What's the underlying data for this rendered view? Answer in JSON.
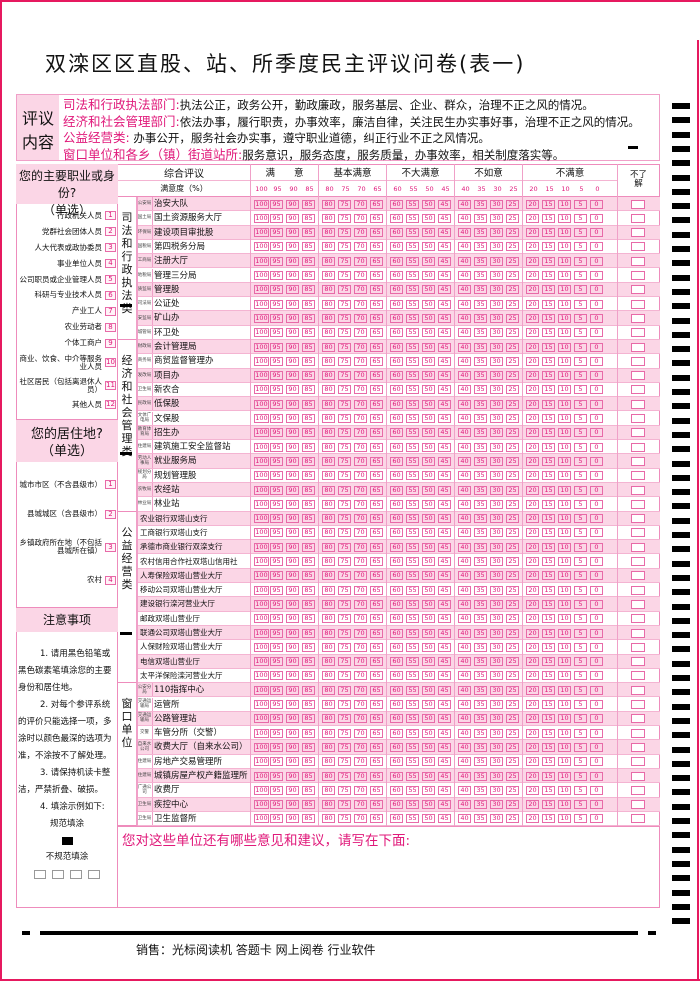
{
  "title": "双滦区区直股、站、所季度民主评议问卷(表一)",
  "review": {
    "label_1": "评议",
    "label_2": "内容",
    "lines": [
      {
        "key": "司法和行政执法部门:",
        "text": "执法公正，政务公开，勤政廉政，服务基层、企业、群众，治理不正之风的情况。"
      },
      {
        "key": "经济和社会管理部门:",
        "text": "依法办事，履行职责，办事效率，廉洁自律，关注民生办实事好事，治理不正之风的情况。"
      },
      {
        "key": "公益经营类:",
        "text": "  办事公开，服务社会办实事，遵守职业道德，纠正行业不正之风情况。"
      },
      {
        "key": "窗口单位和各乡（镇）街道站所:",
        "text": "服务意识，服务态度，服务质量，办事效率，相关制度落实等。"
      }
    ]
  },
  "occupation": {
    "title": "您的主要职业或身份?",
    "subtitle": "（单选）",
    "options": [
      "行政机关人员",
      "党群社会团体人员",
      "人大代表或政协委员",
      "事业单位人员",
      "公司职员或企业管理人员",
      "科研与专业技术人员",
      "产业工人",
      "农业劳动者",
      "个体工商户",
      "商业、饮食、中介等服务业人员",
      "社区居民（包括离退休人员）",
      "其他人员"
    ]
  },
  "residence": {
    "title": "您的居住地?",
    "subtitle": "（单选）",
    "options": [
      "城市市区（不含县级市）",
      "县城城区（含县级市）",
      "乡镇政府所在地（不包括县城所在镇）",
      "农村"
    ]
  },
  "notes": {
    "title": "注意事项",
    "items": [
      "1. 请用黑色铅笔或黑色碳素笔填涂您的主要身份和居住地。",
      "2. 对每个参评系统的评价只能选择一项，多涂时以颜色最深的选项为准，不涂按不了解处理。",
      "3. 请保持机读卡整洁，严禁折叠、破损。",
      "4. 填涂示例如下:"
    ],
    "correct": "规范填涂",
    "incorrect": "不规范填涂"
  },
  "table": {
    "header_overall": "综合评议",
    "header_degree": "满意度（%）",
    "unknown": "不了解",
    "groups": [
      {
        "label": "满　　意",
        "scores": [
          "100",
          "95",
          "90",
          "85"
        ]
      },
      {
        "label": "基本满意",
        "scores": [
          "80",
          "75",
          "70",
          "65"
        ]
      },
      {
        "label": "不大满意",
        "scores": [
          "60",
          "55",
          "50",
          "45"
        ]
      },
      {
        "label": "不如意",
        "scores": [
          "40",
          "35",
          "30",
          "25"
        ]
      },
      {
        "label": "不满意",
        "scores": [
          "20",
          "15",
          "10",
          "5",
          "0"
        ]
      }
    ],
    "categories": [
      {
        "label": "司法和行政执法类",
        "rows": [
          {
            "prefix": "公安局",
            "name": "治安大队"
          },
          {
            "prefix": "国土局",
            "name": "国土资源服务大厅"
          },
          {
            "prefix": "环保局",
            "name": "建设项目审批股"
          },
          {
            "prefix": "国税局",
            "name": "第四税务分局"
          },
          {
            "prefix": "工商局",
            "name": "注册大厅"
          },
          {
            "prefix": "地税局",
            "name": "管理三分局"
          },
          {
            "prefix": "质监局",
            "name": "管理股"
          },
          {
            "prefix": "司法局",
            "name": "公证处"
          },
          {
            "prefix": "安监局",
            "name": "矿山办"
          },
          {
            "prefix": "城管局",
            "name": "环卫处"
          }
        ]
      },
      {
        "label": "经济和社会管理类",
        "rows": [
          {
            "prefix": "财政局",
            "name": "会计管理局"
          },
          {
            "prefix": "商务局",
            "name": "商贸监督管理办"
          },
          {
            "prefix": "发改局",
            "name": "项目办"
          },
          {
            "prefix": "卫生局",
            "name": "新农合"
          },
          {
            "prefix": "民政局",
            "name": "低保股"
          },
          {
            "prefix": "文体广电局",
            "name": "文保股"
          },
          {
            "prefix": "教育体育局",
            "name": "招生办"
          },
          {
            "prefix": "住建局",
            "name": "建筑施工安全监督站"
          },
          {
            "prefix": "劳动人事局",
            "name": "就业服务局"
          },
          {
            "prefix": "规划分局",
            "name": "规划管理股"
          },
          {
            "prefix": "农牧局",
            "name": "农经站"
          },
          {
            "prefix": "林业局",
            "name": "林业站"
          }
        ]
      },
      {
        "label": "公益经营类",
        "rows": [
          {
            "prefix": "",
            "name": "农业银行双塔山支行"
          },
          {
            "prefix": "",
            "name": "工商银行双塔山支行"
          },
          {
            "prefix": "",
            "name": "承德市商业银行双滦支行"
          },
          {
            "prefix": "",
            "name": "农村信用合作社双塔山信用社"
          },
          {
            "prefix": "",
            "name": "人寿保险双塔山营业大厅"
          },
          {
            "prefix": "",
            "name": "移动公司双塔山营业大厅"
          },
          {
            "prefix": "",
            "name": "建设银行滦河营业大厅"
          },
          {
            "prefix": "",
            "name": "邮政双塔山营业厅"
          },
          {
            "prefix": "",
            "name": "联通公司双塔山营业大厅"
          },
          {
            "prefix": "",
            "name": "人保财险双塔山营业大厅"
          },
          {
            "prefix": "",
            "name": "电信双塔山营业厅"
          },
          {
            "prefix": "",
            "name": "太平洋保险滦河营业大厅"
          }
        ]
      },
      {
        "label": "窗口单位",
        "rows": [
          {
            "prefix": "公安分局",
            "name": "110指挥中心"
          },
          {
            "prefix": "交通运输局",
            "name": "运管所"
          },
          {
            "prefix": "交通运输局",
            "name": "公路管理站"
          },
          {
            "prefix": "交警",
            "name": "车管分所（交警）"
          },
          {
            "prefix": "自来水公司",
            "name": "收费大厅（自来水公司）"
          },
          {
            "prefix": "住建局",
            "name": "房地产交易管理所"
          },
          {
            "prefix": "住建局",
            "name": "城镇房屋产权产籍监理所"
          },
          {
            "prefix": "广通公司",
            "name": "收费厅"
          },
          {
            "prefix": "卫生局",
            "name": "疾控中心"
          },
          {
            "prefix": "卫生局",
            "name": "卫生监督所"
          }
        ]
      }
    ]
  },
  "comment_prompt": "您对这些单位还有哪些意见和建议，请写在下面:",
  "footer": "销售：光标阅读机  答题卡  网上阅卷  行业软件",
  "colors": {
    "accent": "#e0197a",
    "row_pink": "#fbd6e6",
    "border": "#ee8cbc",
    "frame": "#e6195f"
  }
}
